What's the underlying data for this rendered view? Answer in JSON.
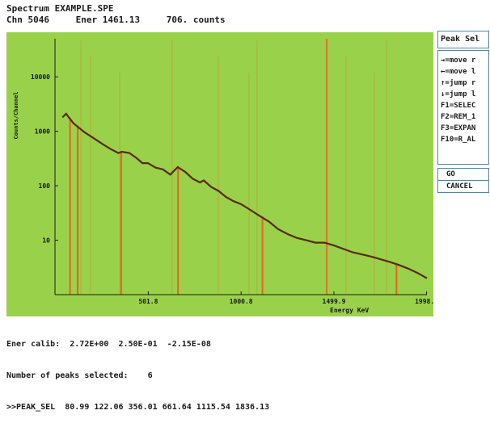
{
  "header": {
    "title": "Spectrum EXAMPLE.SPE",
    "channel": "Chn 5046",
    "energy": "Ener 1461.13",
    "counts": "706. counts"
  },
  "side_panel": {
    "title": "Peak Sel",
    "menu": [
      "→=move r",
      "←=move l",
      "↑=jump r",
      "↓=jump l",
      "F1=SELEC",
      "F2=REM_1",
      "F3=EXPAN",
      "F10=R_AL"
    ],
    "go_label": "GO",
    "cancel_label": "CANCEL"
  },
  "footer": {
    "calib": "Ener calib:  2.72E+00  2.50E-01  -2.15E-08",
    "peaks_selected": "Number of peaks selected:    6",
    "peak_sel": ">>PEAK_SEL  80.99 122.06 356.01 661.64 1115.54 1836.13"
  },
  "colors": {
    "plot_bg": "#9ad14a",
    "spectrum": "#5a2a0c",
    "marker": "#e5621f",
    "text": "#1a1a1a"
  },
  "chart_data": {
    "type": "line",
    "title": "",
    "xlabel": "Energy KeV",
    "ylabel": "Counts/Channel",
    "y_scale": "log",
    "xlim": [
      0,
      2000
    ],
    "ylim": [
      1,
      50000
    ],
    "x_ticks": [
      {
        "value": 501.8,
        "label": "501.8"
      },
      {
        "value": 1000.8,
        "label": "1000.8"
      },
      {
        "value": 1499.9,
        "label": "1499.9"
      },
      {
        "value": 1998.1,
        "label": "1998.1"
      }
    ],
    "y_ticks": [
      {
        "value": 10,
        "label": "10"
      },
      {
        "value": 100,
        "label": "100"
      },
      {
        "value": 1000,
        "label": "1000"
      },
      {
        "value": 10000,
        "label": "10000"
      }
    ],
    "spectrum": {
      "x": [
        40,
        60,
        80,
        100,
        130,
        160,
        200,
        250,
        300,
        340,
        360,
        400,
        440,
        470,
        500,
        540,
        580,
        620,
        660,
        700,
        740,
        780,
        800,
        840,
        880,
        920,
        960,
        1000,
        1050,
        1100,
        1150,
        1200,
        1250,
        1300,
        1350,
        1400,
        1450,
        1500,
        1600,
        1700,
        1800,
        1850,
        1900,
        1950,
        2000
      ],
      "y": [
        1800,
        2100,
        1700,
        1400,
        1150,
        950,
        780,
        600,
        470,
        400,
        420,
        400,
        320,
        260,
        260,
        215,
        200,
        160,
        220,
        180,
        135,
        115,
        125,
        95,
        80,
        62,
        52,
        46,
        36,
        28,
        22,
        16,
        13,
        11,
        10,
        9,
        9,
        8,
        6,
        5,
        4,
        3.5,
        3,
        2.5,
        2
      ]
    },
    "markers": [
      80.99,
      122.06,
      356.01,
      661.64,
      1115.54,
      1836.13
    ],
    "cursor": 1461.13,
    "legend": "none",
    "grid": false
  }
}
